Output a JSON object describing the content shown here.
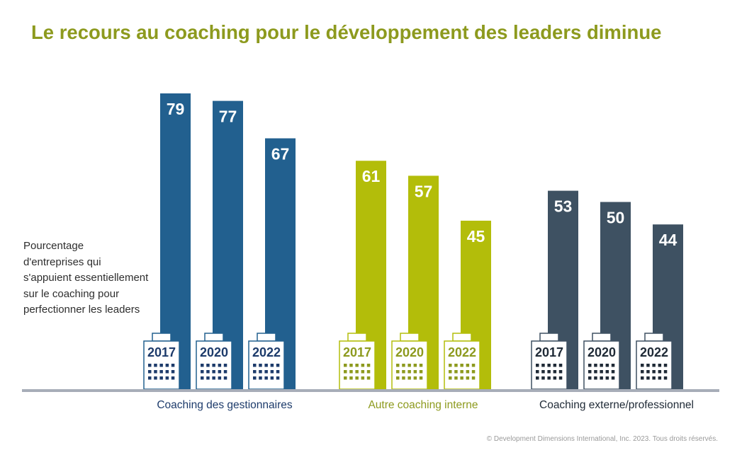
{
  "chart_data": {
    "type": "bar",
    "title": "Le recours au coaching pour le développement des leaders diminue",
    "ylabel_lines": [
      "Pourcentage",
      "d'entreprises qui",
      "s'appuient essentiellement",
      "sur le coaching pour",
      "perfectionner les leaders"
    ],
    "categories": [
      "2017",
      "2020",
      "2022"
    ],
    "groups": [
      {
        "name": "Coaching des gestionnaires",
        "years": [
          "2017",
          "2020",
          "2022"
        ],
        "values": [
          79,
          77,
          67
        ],
        "color": "#22608f",
        "label_color": "#1d3b6b"
      },
      {
        "name": "Autre coaching interne",
        "years": [
          "2017",
          "2020",
          "2022"
        ],
        "values": [
          61,
          57,
          45
        ],
        "color": "#b3bd0a",
        "label_color": "#8d9a1e"
      },
      {
        "name": "Coaching externe/professionnel",
        "years": [
          "2017",
          "2020",
          "2022"
        ],
        "values": [
          53,
          50,
          44
        ],
        "color": "#3e5162",
        "label_color": "#1f2a36"
      }
    ],
    "ylim": [
      0,
      79
    ],
    "grid": false,
    "legend": "none",
    "value_labels": true,
    "icon": "building-icon"
  },
  "footer": {
    "copyright": "© Development Dimensions International, Inc. 2023. Tous droits réservés."
  }
}
